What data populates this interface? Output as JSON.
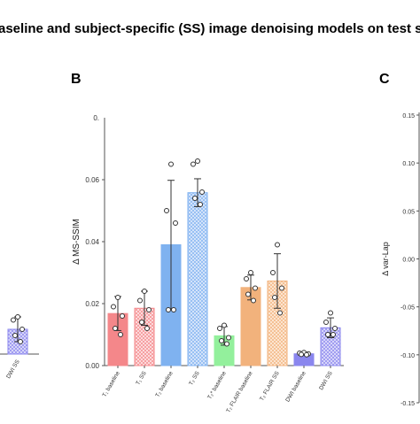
{
  "figure": {
    "title": "aseline and subject-specific (SS) image denoising models on test sets of th",
    "panel_labels": [
      "B",
      "C"
    ]
  },
  "colors": {
    "T1": "#f4878a",
    "T2": "#7fb2f0",
    "T2star": "#93f09c",
    "FLAIR": "#f2b27c",
    "DWI": "#8a86ee",
    "axis": "#555555",
    "errorbar": "#333333"
  },
  "chart_data": [
    {
      "panel": "A (partial)",
      "type": "bar",
      "categories": [
        "DWI SS"
      ],
      "values": [
        0.008
      ],
      "errors": [
        0.004
      ],
      "points": [
        [
          0.012,
          0.011,
          0.008,
          0.006,
          0.004
        ]
      ],
      "hatched": [
        true
      ],
      "color_keys": [
        "DWI"
      ]
    },
    {
      "panel": "B",
      "type": "bar",
      "ylabel": "Δ MS-SSIM",
      "ylim": [
        0,
        0.08
      ],
      "yticks": [
        "0.00",
        "0.02",
        "0.04",
        "0.06"
      ],
      "ytick_values": [
        0,
        0.02,
        0.04,
        0.06
      ],
      "ytop_label": "0.",
      "categories": [
        "T₁ baseline",
        "T₁ SS",
        "T₂ baseline",
        "T₂ SS",
        "T₂* baseline",
        "T₂ FLAIR baseline",
        "T₂ FLAIR SS",
        "DWI baseline",
        "DWI SS"
      ],
      "values": [
        0.0168,
        0.0185,
        0.039,
        0.0558,
        0.0096,
        0.0252,
        0.0273,
        0.0038,
        0.0122
      ],
      "errors": [
        0.0055,
        0.0055,
        0.0208,
        0.0045,
        0.003,
        0.004,
        0.0088,
        0.0005,
        0.0032
      ],
      "points": [
        [
          0.022,
          0.019,
          0.016,
          0.012,
          0.01
        ],
        [
          0.024,
          0.021,
          0.018,
          0.014,
          0.012
        ],
        [
          0.065,
          0.05,
          0.046,
          0.018,
          0.018
        ],
        [
          0.066,
          0.065,
          0.056,
          0.054,
          0.052
        ],
        [
          0.013,
          0.012,
          0.009,
          0.008,
          0.007
        ],
        [
          0.03,
          0.028,
          0.025,
          0.023,
          0.021
        ],
        [
          0.039,
          0.03,
          0.025,
          0.022,
          0.017
        ],
        [
          0.0042,
          0.004,
          0.0038,
          0.0036,
          0.0035
        ],
        [
          0.017,
          0.014,
          0.012,
          0.01,
          0.01
        ]
      ],
      "hatched": [
        false,
        true,
        false,
        true,
        false,
        false,
        true,
        false,
        true
      ],
      "color_keys": [
        "T1",
        "T1",
        "T2",
        "T2",
        "T2star",
        "FLAIR",
        "FLAIR",
        "DWI",
        "DWI"
      ]
    },
    {
      "panel": "C (partial)",
      "type": "bar",
      "ylabel": "Δ var-Lap",
      "yticks": [
        "0.15",
        "0.10",
        "0.05",
        "0.00",
        "-0.05",
        "-0.10",
        "-0.15"
      ],
      "ytick_values": [
        0.15,
        0.1,
        0.05,
        0.0,
        -0.05,
        -0.1,
        -0.15
      ]
    }
  ]
}
